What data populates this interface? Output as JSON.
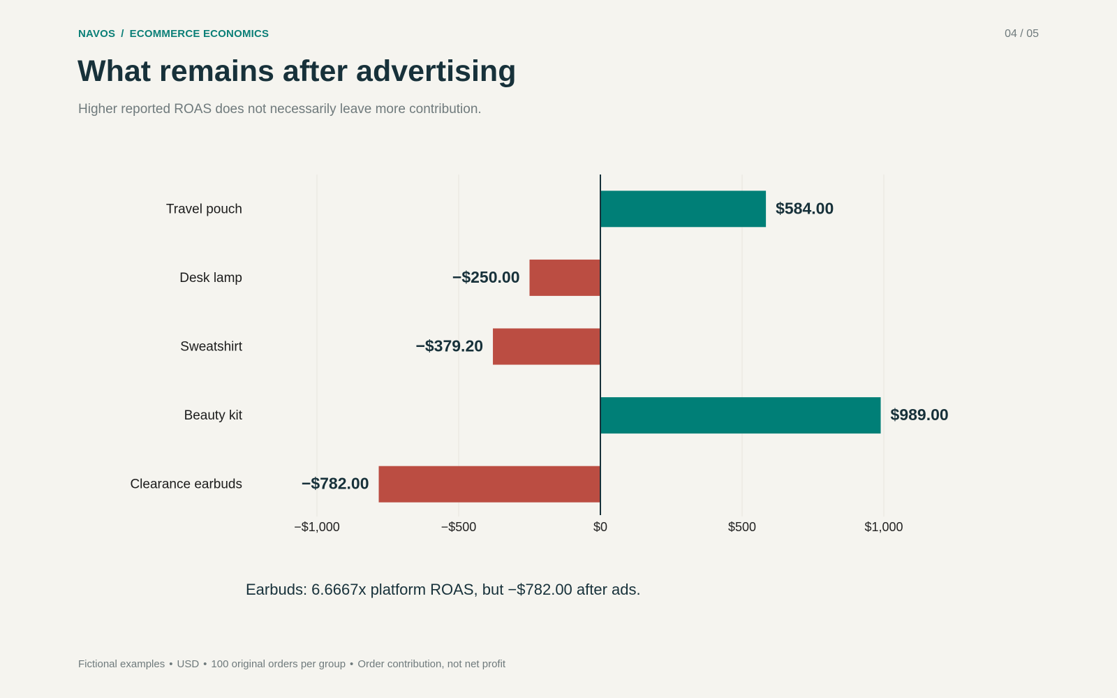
{
  "header": {
    "brand": "NAVOS",
    "separator": "/",
    "section": "ECOMMERCE ECONOMICS",
    "page_indicator": "04 / 05"
  },
  "title": "What remains after advertising",
  "subtitle": "Higher reported ROAS does not necessarily leave more contribution.",
  "colors": {
    "positive": "#007f77",
    "negative": "#bb4d42",
    "text_dark": "#17313a",
    "accent": "#0b7f77",
    "background": "#f5f4ef"
  },
  "chart_data": {
    "type": "bar",
    "orientation": "horizontal",
    "categories": [
      "Travel pouch",
      "Desk lamp",
      "Sweatshirt",
      "Beauty kit",
      "Clearance earbuds"
    ],
    "values": [
      584.0,
      -250.0,
      -379.2,
      989.0,
      -782.0
    ],
    "value_labels": [
      "$584.00",
      "−$250.00",
      "−$379.20",
      "$989.00",
      "−$782.00"
    ],
    "xlim": [
      -1000,
      1000
    ],
    "x_ticks": [
      -1000,
      -500,
      0,
      500,
      1000
    ],
    "x_tick_labels": [
      "−$1,000",
      "−$500",
      "$0",
      "$500",
      "$1,000"
    ],
    "grid": true
  },
  "annotation": "Earbuds: 6.6667x platform ROAS, but −$782.00 after ads.",
  "footnote": {
    "items": [
      "Fictional examples",
      "USD",
      "100 original orders per group",
      "Order contribution, not net profit"
    ],
    "separator": "•"
  }
}
